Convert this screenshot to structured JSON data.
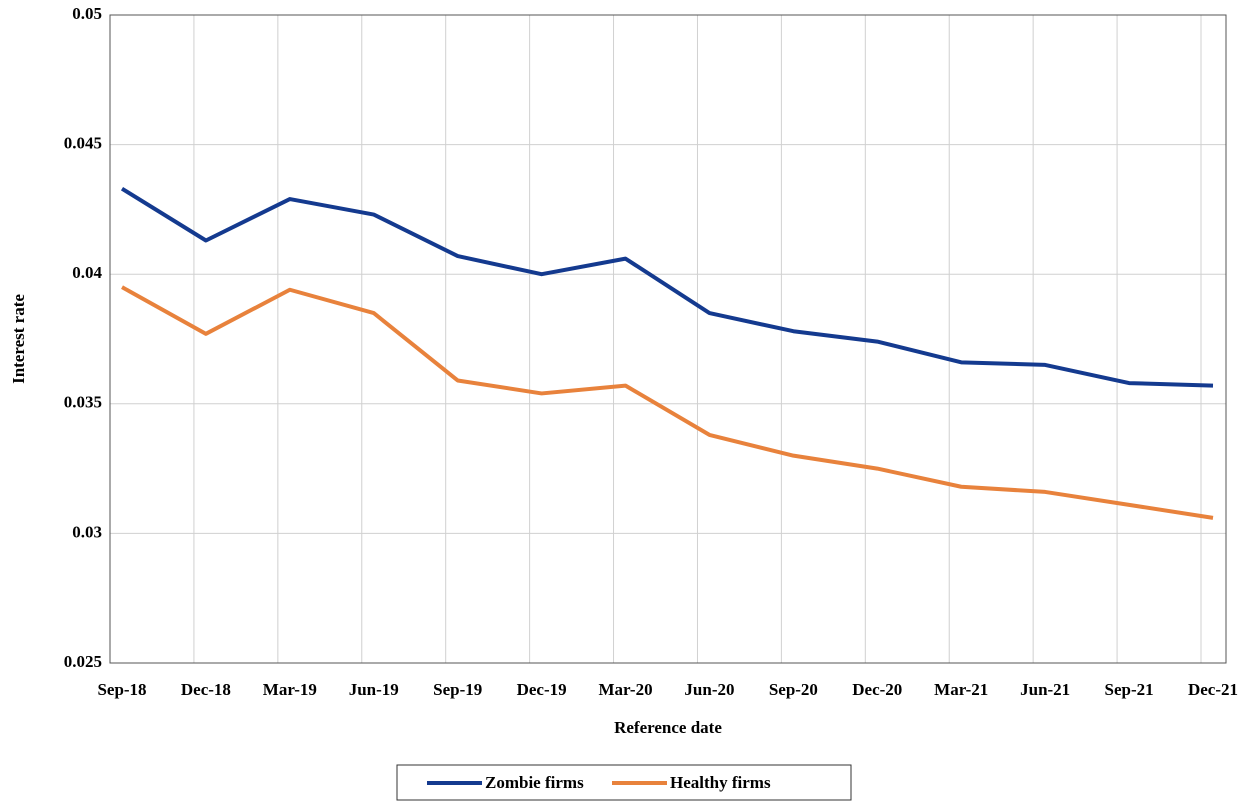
{
  "chart_data": {
    "type": "line",
    "x_label": "Reference date",
    "y_label": "Interest rate",
    "categories": [
      "Sep-18",
      "Dec-18",
      "Mar-19",
      "Jun-19",
      "Sep-19",
      "Dec-19",
      "Mar-20",
      "Jun-20",
      "Sep-20",
      "Dec-20",
      "Mar-21",
      "Jun-21",
      "Sep-21",
      "Dec-21"
    ],
    "series": [
      {
        "name": "Zombie firms",
        "color": "#143a8f",
        "values": [
          0.0433,
          0.0413,
          0.0429,
          0.0423,
          0.0407,
          0.04,
          0.0406,
          0.0385,
          0.0378,
          0.0374,
          0.0366,
          0.0365,
          0.0358,
          0.0357
        ]
      },
      {
        "name": "Healthy firms",
        "color": "#e8823c",
        "values": [
          0.0395,
          0.0377,
          0.0394,
          0.0385,
          0.0359,
          0.0354,
          0.0357,
          0.0338,
          0.033,
          0.0325,
          0.0318,
          0.0316,
          0.0311,
          0.0306
        ]
      }
    ],
    "ylim": [
      0.025,
      0.05
    ],
    "yticks": [
      0.025,
      0.03,
      0.035,
      0.04,
      0.045,
      0.05
    ],
    "grid": true
  }
}
